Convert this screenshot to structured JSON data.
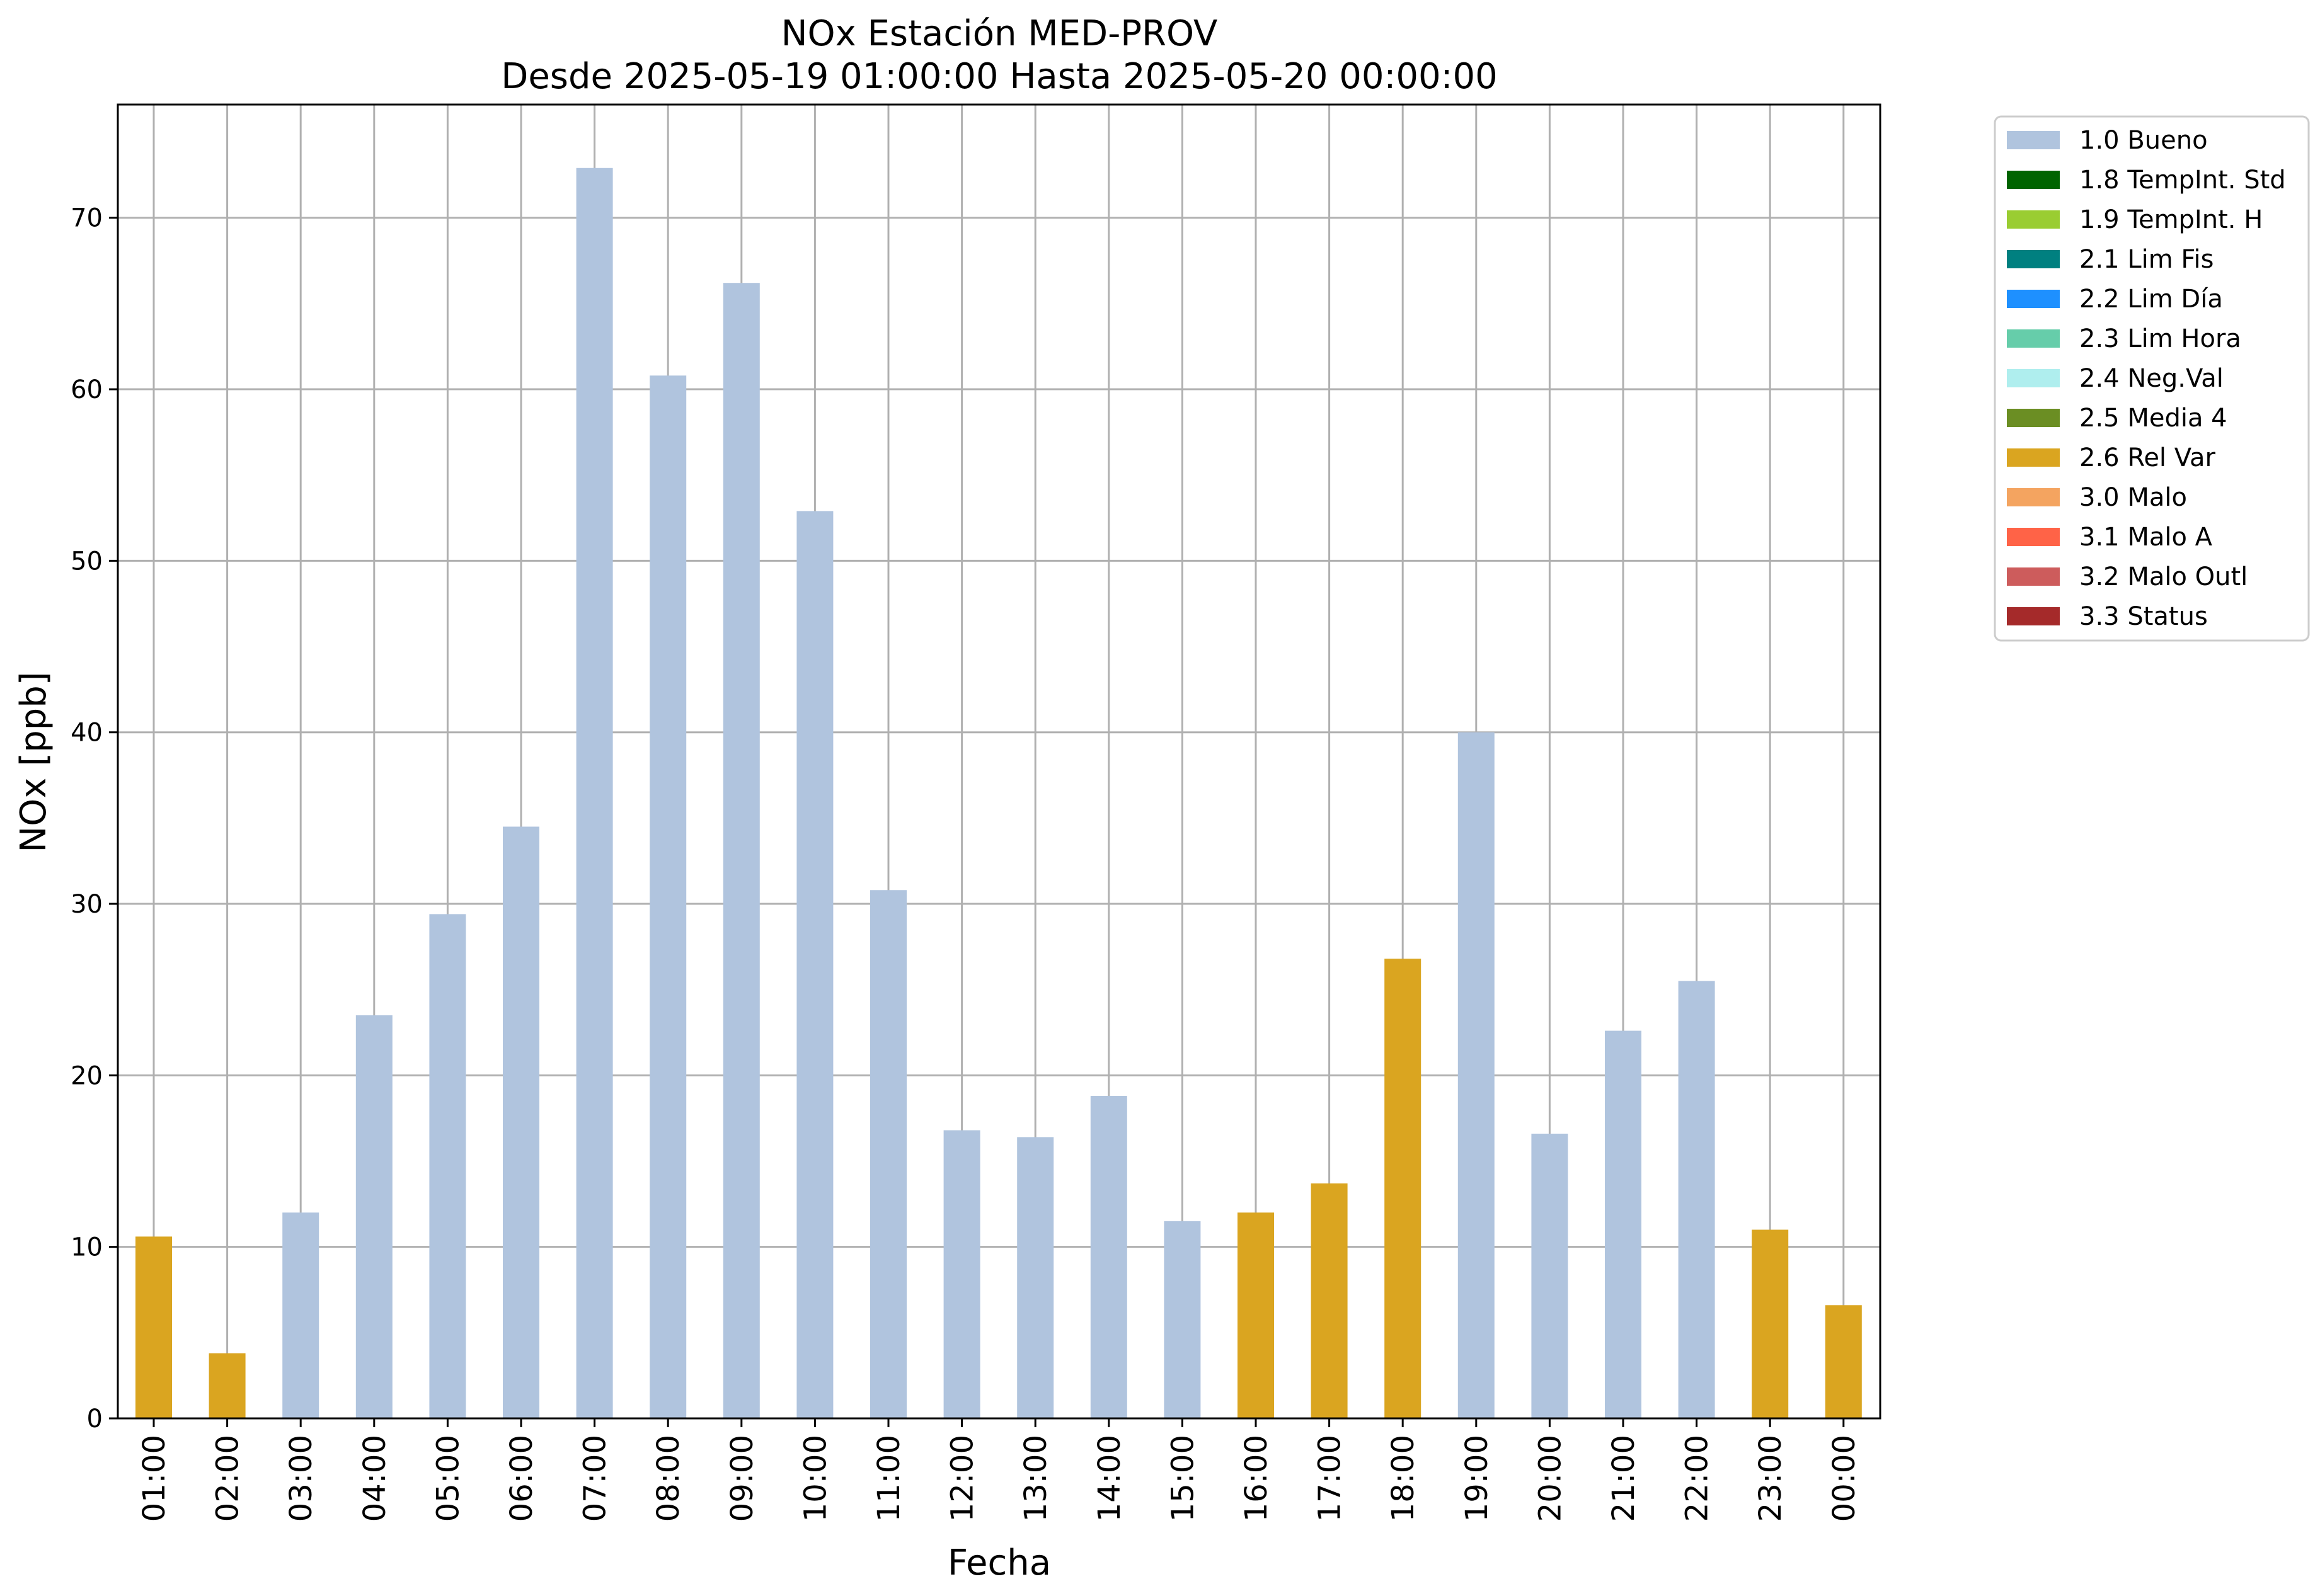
{
  "chart_data": {
    "type": "bar",
    "title": "NOx Estación MED-PROV",
    "subtitle": "Desde 2025-05-19 01:00:00 Hasta 2025-05-20 00:00:00",
    "xlabel": "Fecha",
    "ylabel": "NOx [ppb]",
    "ylim": [
      0,
      76.6
    ],
    "yticks": [
      0,
      10,
      20,
      30,
      40,
      50,
      60,
      70
    ],
    "grid": true,
    "legend_position": "outside-top-right",
    "categories": [
      "01:00",
      "02:00",
      "03:00",
      "04:00",
      "05:00",
      "06:00",
      "07:00",
      "08:00",
      "09:00",
      "10:00",
      "11:00",
      "12:00",
      "13:00",
      "14:00",
      "15:00",
      "16:00",
      "17:00",
      "18:00",
      "19:00",
      "20:00",
      "21:00",
      "22:00",
      "23:00",
      "00:00"
    ],
    "values": [
      10.6,
      3.8,
      12.0,
      23.5,
      29.4,
      34.5,
      72.9,
      60.8,
      66.2,
      52.9,
      30.8,
      16.8,
      16.4,
      18.8,
      11.5,
      12.0,
      13.7,
      26.8,
      40.0,
      16.6,
      22.6,
      25.5,
      11.0,
      6.6
    ],
    "flags": [
      "2.6 Rel Var",
      "2.6 Rel Var",
      "1.0 Bueno",
      "1.0 Bueno",
      "1.0 Bueno",
      "1.0 Bueno",
      "1.0 Bueno",
      "1.0 Bueno",
      "1.0 Bueno",
      "1.0 Bueno",
      "1.0 Bueno",
      "1.0 Bueno",
      "1.0 Bueno",
      "1.0 Bueno",
      "1.0 Bueno",
      "2.6 Rel Var",
      "2.6 Rel Var",
      "2.6 Rel Var",
      "1.0 Bueno",
      "1.0 Bueno",
      "1.0 Bueno",
      "1.0 Bueno",
      "2.6 Rel Var",
      "2.6 Rel Var"
    ],
    "legend": [
      {
        "label": "1.0 Bueno",
        "color": "#b0c4de"
      },
      {
        "label": "1.8 TempInt. Std",
        "color": "#006400"
      },
      {
        "label": "1.9 TempInt. H",
        "color": "#9acd32"
      },
      {
        "label": "2.1 Lim Fis",
        "color": "#008080"
      },
      {
        "label": "2.2 Lim Día",
        "color": "#1e90ff"
      },
      {
        "label": "2.3 Lim Hora",
        "color": "#66cdaa"
      },
      {
        "label": "2.4 Neg.Val",
        "color": "#afeeee"
      },
      {
        "label": "2.5 Media 4",
        "color": "#6b8e23"
      },
      {
        "label": "2.6 Rel Var",
        "color": "#daa520"
      },
      {
        "label": "3.0 Malo",
        "color": "#f4a460"
      },
      {
        "label": "3.1 Malo A",
        "color": "#ff6347"
      },
      {
        "label": "3.2 Malo Outl",
        "color": "#cd5c5c"
      },
      {
        "label": "3.3 Status",
        "color": "#a52a2a"
      }
    ]
  }
}
